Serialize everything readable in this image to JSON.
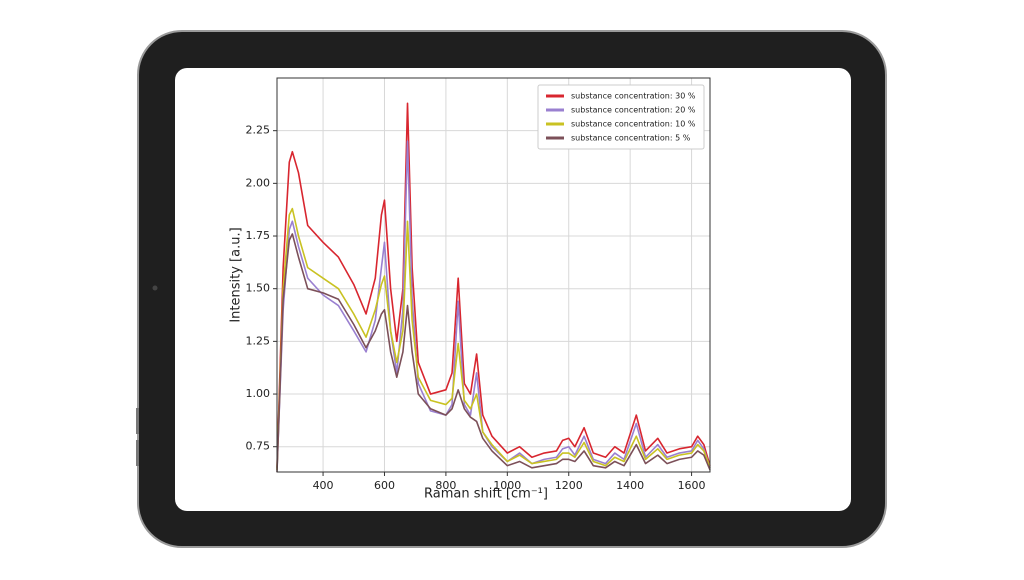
{
  "chart_data": {
    "type": "line",
    "xlabel": "Raman shift [cm⁻¹]",
    "ylabel": "Intensity [a.u.]",
    "x": [
      250,
      270,
      290,
      300,
      320,
      350,
      400,
      450,
      500,
      540,
      570,
      590,
      600,
      620,
      640,
      660,
      675,
      690,
      710,
      750,
      800,
      820,
      840,
      860,
      880,
      900,
      920,
      950,
      1000,
      1040,
      1080,
      1120,
      1160,
      1180,
      1200,
      1220,
      1250,
      1280,
      1320,
      1350,
      1380,
      1420,
      1450,
      1490,
      1520,
      1560,
      1600,
      1620,
      1640,
      1660
    ],
    "series": [
      {
        "name": "substance concentration: 30 %",
        "color": "#d8262f",
        "values": [
          0.65,
          1.6,
          2.1,
          2.15,
          2.05,
          1.8,
          1.72,
          1.65,
          1.52,
          1.38,
          1.55,
          1.85,
          1.92,
          1.5,
          1.25,
          1.5,
          2.38,
          1.6,
          1.15,
          1.0,
          1.02,
          1.1,
          1.55,
          1.05,
          1.0,
          1.19,
          0.9,
          0.8,
          0.72,
          0.75,
          0.7,
          0.72,
          0.73,
          0.78,
          0.79,
          0.75,
          0.84,
          0.72,
          0.7,
          0.75,
          0.72,
          0.9,
          0.73,
          0.79,
          0.72,
          0.74,
          0.75,
          0.8,
          0.76,
          0.66
        ]
      },
      {
        "name": "substance concentration: 20 %",
        "color": "#9a80d0",
        "values": [
          0.64,
          1.4,
          1.78,
          1.82,
          1.7,
          1.55,
          1.47,
          1.42,
          1.3,
          1.2,
          1.35,
          1.6,
          1.72,
          1.3,
          1.1,
          1.4,
          2.2,
          1.45,
          1.05,
          0.92,
          0.9,
          0.95,
          1.44,
          0.95,
          0.9,
          1.1,
          0.82,
          0.75,
          0.68,
          0.72,
          0.67,
          0.69,
          0.7,
          0.74,
          0.75,
          0.71,
          0.8,
          0.69,
          0.67,
          0.72,
          0.69,
          0.86,
          0.7,
          0.76,
          0.7,
          0.72,
          0.73,
          0.78,
          0.74,
          0.65
        ]
      },
      {
        "name": "substance concentration: 10 %",
        "color": "#c9c222",
        "values": [
          0.64,
          1.5,
          1.85,
          1.88,
          1.75,
          1.6,
          1.55,
          1.5,
          1.38,
          1.27,
          1.4,
          1.52,
          1.56,
          1.3,
          1.15,
          1.3,
          1.82,
          1.35,
          1.08,
          0.97,
          0.95,
          0.98,
          1.24,
          0.97,
          0.93,
          1.0,
          0.82,
          0.76,
          0.68,
          0.71,
          0.67,
          0.68,
          0.69,
          0.72,
          0.72,
          0.7,
          0.77,
          0.68,
          0.66,
          0.7,
          0.68,
          0.8,
          0.69,
          0.74,
          0.69,
          0.71,
          0.72,
          0.76,
          0.73,
          0.65
        ]
      },
      {
        "name": "substance concentration: 5 %",
        "color": "#7c5059",
        "values": [
          0.63,
          1.45,
          1.73,
          1.76,
          1.65,
          1.5,
          1.48,
          1.45,
          1.33,
          1.22,
          1.3,
          1.38,
          1.4,
          1.2,
          1.08,
          1.2,
          1.42,
          1.2,
          1.0,
          0.93,
          0.9,
          0.93,
          1.02,
          0.93,
          0.89,
          0.87,
          0.79,
          0.73,
          0.66,
          0.68,
          0.65,
          0.66,
          0.67,
          0.69,
          0.69,
          0.68,
          0.73,
          0.66,
          0.65,
          0.68,
          0.66,
          0.76,
          0.67,
          0.71,
          0.67,
          0.69,
          0.7,
          0.73,
          0.71,
          0.64
        ]
      }
    ],
    "xlim": [
      250,
      1660
    ],
    "ylim": [
      0.63,
      2.5
    ],
    "xticks": [
      400,
      600,
      800,
      1000,
      1200,
      1400,
      1600
    ],
    "yticks": [
      0.75,
      {
        "value": 1,
        "label": "1.00"
      },
      1.25,
      {
        "value": 1.5,
        "label": "1.50"
      },
      1.75,
      {
        "value": 2,
        "label": "2.00"
      },
      2.25
    ],
    "grid": true,
    "legend": "upper right"
  }
}
